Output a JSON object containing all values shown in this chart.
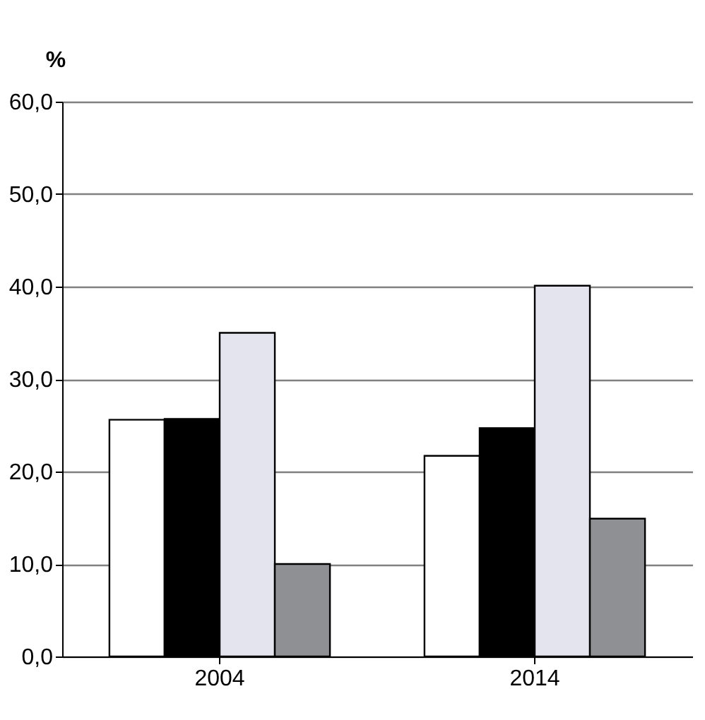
{
  "chart_data": {
    "type": "bar",
    "ylabel": "%",
    "categories": [
      "2004",
      "2014"
    ],
    "series": [
      {
        "color": "#ffffff",
        "values": [
          25.6,
          21.7
        ]
      },
      {
        "color": "#000000",
        "values": [
          25.7,
          24.7
        ]
      },
      {
        "color": "#e4e4ee",
        "values": [
          35.0,
          40.1
        ]
      },
      {
        "color": "#8e9093",
        "values": [
          10.0,
          14.9
        ]
      }
    ],
    "ylim": [
      0,
      60
    ],
    "yticks": [
      {
        "value": 0,
        "label": "0,0"
      },
      {
        "value": 10,
        "label": "10,0"
      },
      {
        "value": 20,
        "label": "20,0"
      },
      {
        "value": 30,
        "label": "30,0"
      },
      {
        "value": 40,
        "label": "40,0"
      },
      {
        "value": 50,
        "label": "50,0"
      },
      {
        "value": 60,
        "label": "60,0"
      }
    ],
    "grid": "y",
    "legend": false
  }
}
